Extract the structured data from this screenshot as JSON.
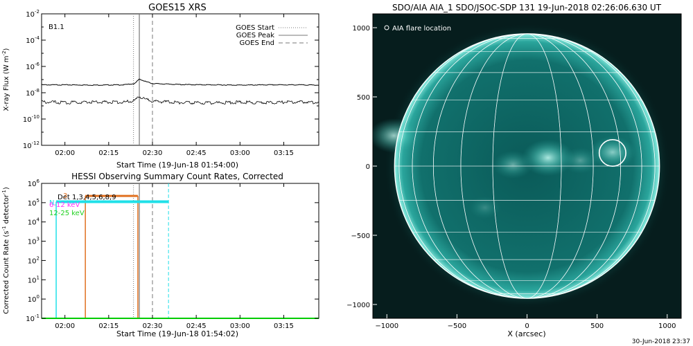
{
  "colors": {
    "aia_disk": "#0f6a68",
    "aia_limb": "#7fe8dc",
    "hessi_3_6": "#e07020",
    "hessi_6_12": "#ff30ff",
    "hessi_12_25": "#20d020",
    "hessi_nonflare": "#20e0e8",
    "baseline_green": "#00cc00"
  },
  "footer": {
    "timestamp": "30-Jun-2018 23:37"
  },
  "chart_data": [
    {
      "type": "line",
      "title": "GOES15 XRS",
      "xlabel": "Start Time (19-Jun-18 01:54:00)",
      "ylabel": "X-ray Flux (W m",
      "ylabel_sup": "-2",
      "ylabel_end": ")",
      "annotation": "B1.1",
      "log_y": true,
      "xlim": [
        -8,
        87
      ],
      "ylim_exp": [
        -12,
        -2
      ],
      "x_ticks": [
        0,
        15,
        30,
        45,
        60,
        75
      ],
      "x_tick_labels": [
        "02:00",
        "02:15",
        "02:30",
        "02:45",
        "03:00",
        "03:15"
      ],
      "y_tick_exponents": [
        -12,
        -10,
        -8,
        -6,
        -4,
        -2
      ],
      "y_tick_mantissa": "10",
      "events": {
        "start": 23.5,
        "peak": 25.5,
        "end": 30
      },
      "legend": {
        "position": "top-right",
        "entries": [
          {
            "label": "GOES Start",
            "style": "dotted"
          },
          {
            "label": "GOES Peak",
            "style": "solid"
          },
          {
            "label": "GOES End",
            "style": "dashed"
          }
        ]
      },
      "series": [
        {
          "channel": "long",
          "x": [
            -8,
            0,
            10,
            20,
            24,
            25.5,
            27,
            30,
            40,
            50,
            60,
            70,
            80,
            87
          ],
          "y_exp": [
            -7.4,
            -7.4,
            -7.42,
            -7.4,
            -7.3,
            -6.95,
            -7.1,
            -7.3,
            -7.38,
            -7.4,
            -7.42,
            -7.4,
            -7.4,
            -7.42
          ]
        },
        {
          "channel": "short",
          "x": [
            -8,
            0,
            10,
            20,
            24,
            25.5,
            27,
            30,
            40,
            50,
            60,
            70,
            80,
            87
          ],
          "y_exp": [
            -8.7,
            -8.75,
            -8.7,
            -8.72,
            -8.6,
            -8.3,
            -8.45,
            -8.65,
            -8.75,
            -8.78,
            -8.72,
            -8.75,
            -8.7,
            -8.75
          ]
        }
      ]
    },
    {
      "type": "line",
      "title": "HESSI Observing Summary Count Rates, Corrected",
      "xlabel": "Start Time (19-Jun-18 01:54:02)",
      "ylabel": "Corrected Count Rate (s",
      "ylabel_sup": "-1",
      "ylabel_mid": " detector",
      "ylabel_sup2": "-1",
      "ylabel_end": ")",
      "log_y": true,
      "xlim": [
        -8,
        87
      ],
      "ylim_exp": [
        -1,
        6
      ],
      "x_ticks": [
        0,
        15,
        30,
        45,
        60,
        75
      ],
      "x_tick_labels": [
        "02:00",
        "02:15",
        "02:30",
        "02:45",
        "03:00",
        "03:15"
      ],
      "y_tick_exponents": [
        -1,
        0,
        1,
        2,
        3,
        4,
        5,
        6
      ],
      "y_tick_mantissa": "10",
      "detectors_label": "Det 1,3,4,5,6,8,9",
      "legend_entries": [
        {
          "label": "3-6 keV",
          "label_visible": "3",
          "color_key": "hessi_3_6"
        },
        {
          "label_visible": "N",
          "color_key": "hessi_nonflare"
        },
        {
          "label": "6-12 keV",
          "color_key": "hessi_6_12"
        },
        {
          "label": "12-25 keV",
          "color_key": "hessi_12_25"
        }
      ],
      "events": {
        "start": 23.5,
        "peak": 25.5,
        "end": 30
      },
      "cyan_bounds": {
        "start": -3,
        "end": 35.5
      },
      "orange_bounds": {
        "start": 7,
        "end": 25
      },
      "series": [
        {
          "name": "3-6 keV",
          "x": [
            7,
            25
          ],
          "y_exp": [
            5.35,
            5.35
          ],
          "color_key": "hessi_3_6"
        },
        {
          "name": "nonflare",
          "x": [
            -3,
            35.5
          ],
          "y_exp": [
            5.05,
            5.05
          ],
          "color_key": "hessi_nonflare"
        },
        {
          "name": "12-25 keV",
          "x": [
            -8,
            87
          ],
          "y_exp": [
            -1,
            -1
          ],
          "color_key": "baseline_green"
        }
      ]
    },
    {
      "type": "heatmap",
      "title": "SDO/AIA AIA_1 SDO/JSOC-SDP 131 19-Jun-2018 02:26:06.630 UT",
      "xlabel": "X (arcsec)",
      "ylabel": "",
      "legend_label": "AIA flare location",
      "xlim": [
        -1100,
        1100
      ],
      "ylim": [
        -1100,
        1100
      ],
      "x_ticks": [
        -1000,
        -500,
        0,
        500,
        1000
      ],
      "y_ticks": [
        -1000,
        -500,
        0,
        500,
        1000
      ],
      "solar_radius": 945,
      "flare_location": [
        610,
        95
      ],
      "flare_circle_radius": 95,
      "active_regions": [
        {
          "x": 150,
          "y": 60,
          "strength": 0.9
        },
        {
          "x": -100,
          "y": 10,
          "strength": 0.5
        },
        {
          "x": 380,
          "y": 40,
          "strength": 0.4
        },
        {
          "x": -950,
          "y": 220,
          "strength": 0.8
        },
        {
          "x": 610,
          "y": 100,
          "strength": 0.7
        },
        {
          "x": -300,
          "y": -300,
          "strength": 0.25
        }
      ]
    }
  ]
}
